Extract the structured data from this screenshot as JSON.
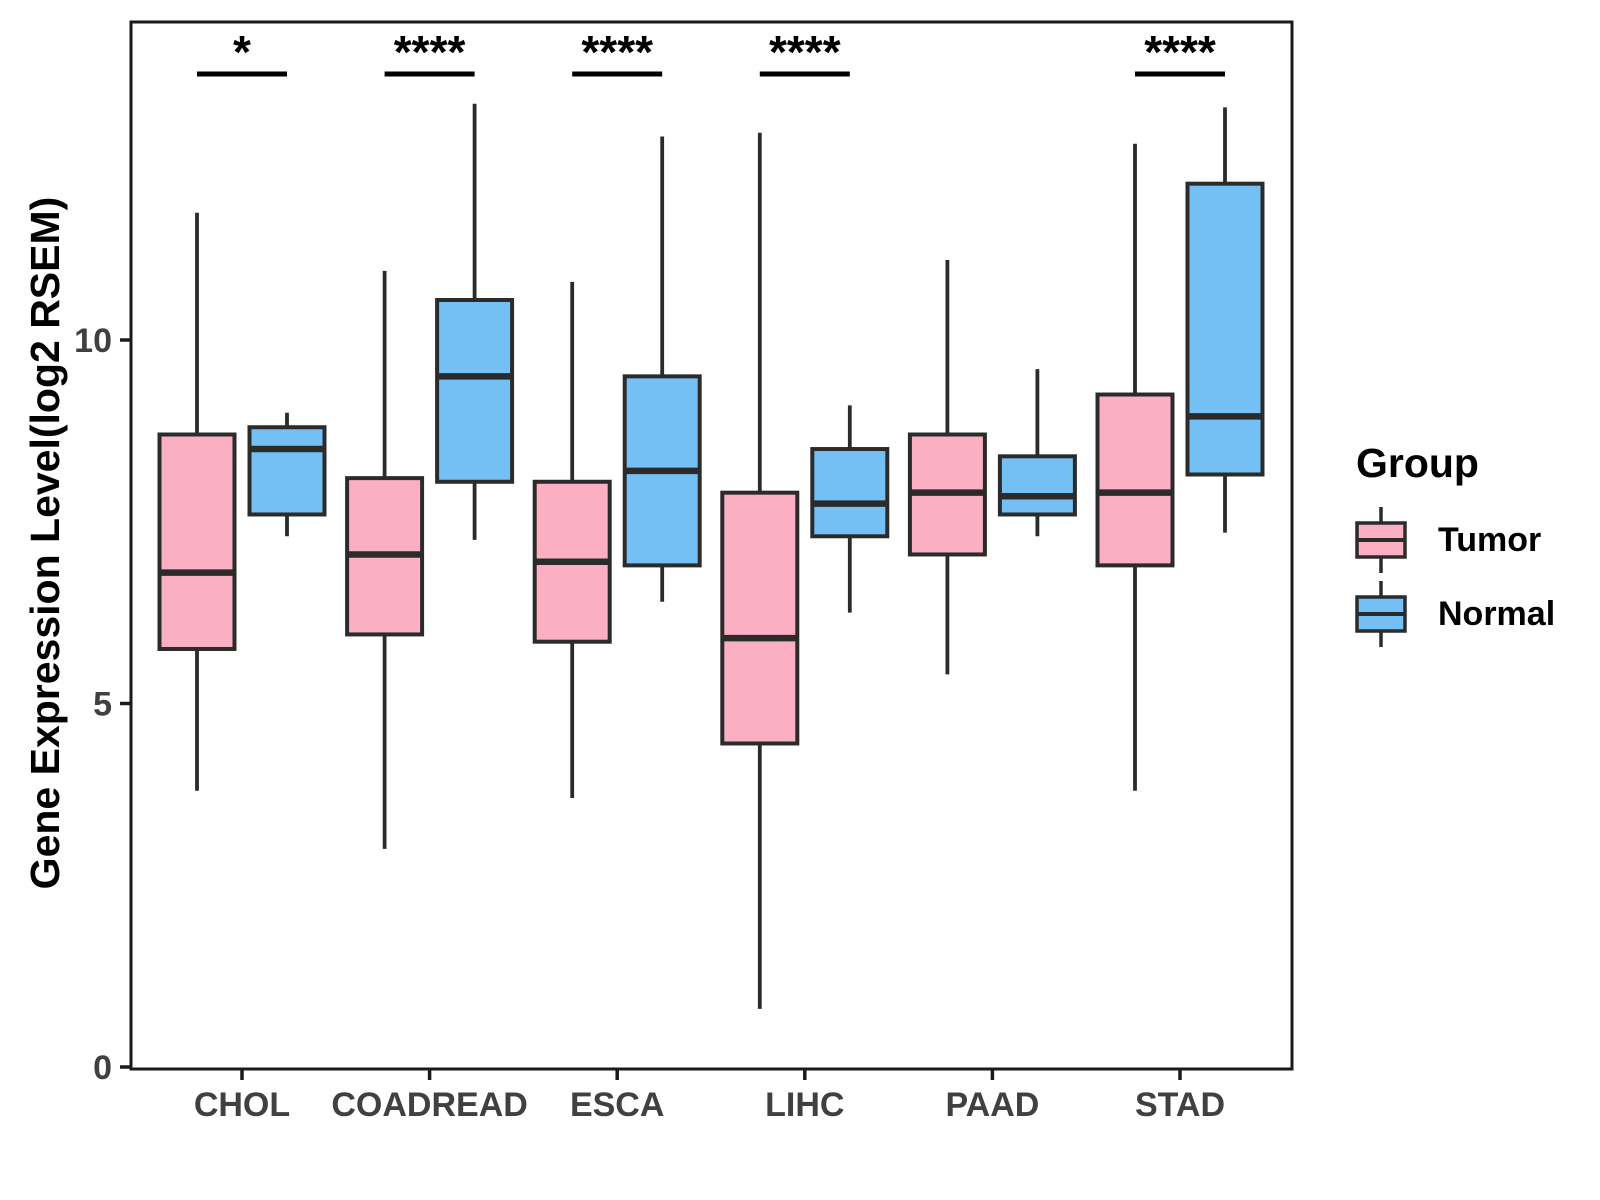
{
  "figure": {
    "background": "#ffffff"
  },
  "chart_data": {
    "type": "boxplot",
    "title": "",
    "xlabel": "",
    "ylabel": "Gene Expression Level(log2 RSEM)",
    "ylim": [
      0,
      14.4
    ],
    "yticks": [
      0,
      5,
      10
    ],
    "grid": false,
    "categories": [
      "CHOL",
      "COADREAD",
      "ESCA",
      "LIHC",
      "PAAD",
      "STAD"
    ],
    "groups": [
      "Tumor",
      "Normal"
    ],
    "colors": {
      "tumor_fill": "#FBAFC2",
      "normal_fill": "#74C0F4",
      "stroke": "#2B2B2B",
      "panel_border": "#1A1A1A",
      "axis_text": "#404040",
      "significance": "#000000"
    },
    "series": [
      {
        "name": "Tumor",
        "boxes": [
          {
            "category": "CHOL",
            "whisker_low": 3.8,
            "q1": 5.75,
            "median": 6.8,
            "q3": 8.7,
            "whisker_high": 11.75
          },
          {
            "category": "COADREAD",
            "whisker_low": 3.0,
            "q1": 5.95,
            "median": 7.05,
            "q3": 8.1,
            "whisker_high": 10.95
          },
          {
            "category": "ESCA",
            "whisker_low": 3.7,
            "q1": 5.85,
            "median": 6.95,
            "q3": 8.05,
            "whisker_high": 10.8
          },
          {
            "category": "LIHC",
            "whisker_low": 0.8,
            "q1": 4.45,
            "median": 5.9,
            "q3": 7.9,
            "whisker_high": 12.85
          },
          {
            "category": "PAAD",
            "whisker_low": 5.4,
            "q1": 7.05,
            "median": 7.9,
            "q3": 8.7,
            "whisker_high": 11.1
          },
          {
            "category": "STAD",
            "whisker_low": 3.8,
            "q1": 6.9,
            "median": 7.9,
            "q3": 9.25,
            "whisker_high": 12.7
          }
        ]
      },
      {
        "name": "Normal",
        "boxes": [
          {
            "category": "CHOL",
            "whisker_low": 7.3,
            "q1": 7.6,
            "median": 8.5,
            "q3": 8.8,
            "whisker_high": 9.0
          },
          {
            "category": "COADREAD",
            "whisker_low": 7.25,
            "q1": 8.05,
            "median": 9.5,
            "q3": 10.55,
            "whisker_high": 13.25
          },
          {
            "category": "ESCA",
            "whisker_low": 6.4,
            "q1": 6.9,
            "median": 8.2,
            "q3": 9.5,
            "whisker_high": 12.8
          },
          {
            "category": "LIHC",
            "whisker_low": 6.25,
            "q1": 7.3,
            "median": 7.75,
            "q3": 8.5,
            "whisker_high": 9.1
          },
          {
            "category": "PAAD",
            "whisker_low": 7.3,
            "q1": 7.6,
            "median": 7.85,
            "q3": 8.4,
            "whisker_high": 9.6
          },
          {
            "category": "STAD",
            "whisker_low": 7.35,
            "q1": 8.15,
            "median": 8.95,
            "q3": 12.15,
            "whisker_high": 13.2
          }
        ]
      }
    ],
    "significance": [
      {
        "category": "CHOL",
        "label": "*"
      },
      {
        "category": "COADREAD",
        "label": "****"
      },
      {
        "category": "ESCA",
        "label": "****"
      },
      {
        "category": "LIHC",
        "label": "****"
      },
      {
        "category": "STAD",
        "label": "****"
      }
    ],
    "legend": {
      "title": "Group",
      "position": "right",
      "entries": [
        {
          "label": "Tumor"
        },
        {
          "label": "Normal"
        }
      ]
    }
  }
}
